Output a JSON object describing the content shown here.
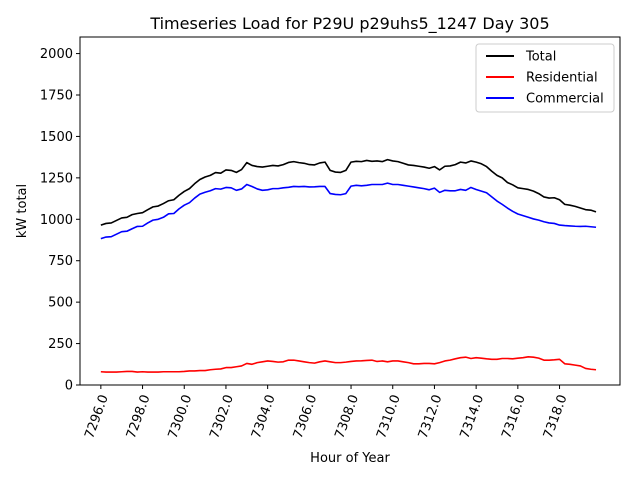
{
  "chart_data": {
    "type": "line",
    "title": "Timeseries Load for P29U p29uhs5_1247  Day 305",
    "xlabel": "Hour of Year",
    "ylabel": "kW total",
    "xlim": [
      7295.0,
      7320.9
    ],
    "ylim": [
      0,
      2100
    ],
    "xticks": [
      7296,
      7298,
      7300,
      7302,
      7304,
      7306,
      7308,
      7310,
      7312,
      7314,
      7316,
      7318
    ],
    "xtick_labels": [
      "7296.0",
      "7298.0",
      "7300.0",
      "7302.0",
      "7304.0",
      "7306.0",
      "7308.0",
      "7310.0",
      "7312.0",
      "7314.0",
      "7316.0",
      "7318.0"
    ],
    "yticks": [
      0,
      250,
      500,
      750,
      1000,
      1250,
      1500,
      1750,
      2000
    ],
    "ytick_labels": [
      "0",
      "250",
      "500",
      "750",
      "1000",
      "1250",
      "1500",
      "1750",
      "2000"
    ],
    "grid": false,
    "legend_position": "top-right",
    "x": [
      7296.0,
      7296.25,
      7296.5,
      7296.75,
      7297.0,
      7297.25,
      7297.5,
      7297.75,
      7298.0,
      7298.25,
      7298.5,
      7298.75,
      7299.0,
      7299.25,
      7299.5,
      7299.75,
      7300.0,
      7300.25,
      7300.5,
      7300.75,
      7301.0,
      7301.25,
      7301.5,
      7301.75,
      7302.0,
      7302.25,
      7302.5,
      7302.75,
      7303.0,
      7303.25,
      7303.5,
      7303.75,
      7304.0,
      7304.25,
      7304.5,
      7304.75,
      7305.0,
      7305.25,
      7305.5,
      7305.75,
      7306.0,
      7306.25,
      7306.5,
      7306.75,
      7307.0,
      7307.25,
      7307.5,
      7307.75,
      7308.0,
      7308.25,
      7308.5,
      7308.75,
      7309.0,
      7309.25,
      7309.5,
      7309.75,
      7310.0,
      7310.25,
      7310.5,
      7310.75,
      7311.0,
      7311.25,
      7311.5,
      7311.75,
      7312.0,
      7312.25,
      7312.5,
      7312.75,
      7313.0,
      7313.25,
      7313.5,
      7313.75,
      7314.0,
      7314.25,
      7314.5,
      7314.75,
      7315.0,
      7315.25,
      7315.5,
      7315.75,
      7316.0,
      7316.25,
      7316.5,
      7316.75,
      7317.0,
      7317.25,
      7317.5,
      7317.75,
      7318.0,
      7318.25,
      7318.5,
      7318.75,
      7319.0,
      7319.25,
      7319.5,
      7319.75
    ],
    "series": [
      {
        "name": "Total",
        "color": "#000000",
        "values": [
          965,
          975,
          978,
          993,
          1008,
          1012,
          1028,
          1035,
          1040,
          1058,
          1075,
          1080,
          1095,
          1112,
          1118,
          1145,
          1168,
          1185,
          1215,
          1240,
          1255,
          1265,
          1282,
          1278,
          1298,
          1295,
          1283,
          1300,
          1342,
          1325,
          1318,
          1315,
          1320,
          1325,
          1322,
          1330,
          1343,
          1348,
          1342,
          1338,
          1330,
          1328,
          1340,
          1345,
          1295,
          1285,
          1283,
          1295,
          1345,
          1350,
          1348,
          1355,
          1350,
          1352,
          1348,
          1360,
          1352,
          1348,
          1338,
          1328,
          1325,
          1320,
          1315,
          1308,
          1318,
          1298,
          1320,
          1322,
          1330,
          1345,
          1340,
          1352,
          1345,
          1335,
          1318,
          1290,
          1265,
          1250,
          1222,
          1208,
          1190,
          1185,
          1180,
          1170,
          1155,
          1135,
          1128,
          1130,
          1118,
          1090,
          1085,
          1078,
          1068,
          1058,
          1055,
          1045
        ]
      },
      {
        "name": "Residential",
        "color": "#ff0000",
        "values": [
          80,
          78,
          78,
          78,
          80,
          82,
          82,
          78,
          80,
          78,
          78,
          78,
          80,
          80,
          80,
          80,
          82,
          85,
          85,
          87,
          87,
          92,
          95,
          97,
          105,
          105,
          110,
          115,
          130,
          125,
          135,
          140,
          145,
          142,
          138,
          140,
          150,
          150,
          145,
          140,
          135,
          132,
          140,
          145,
          140,
          135,
          135,
          138,
          142,
          145,
          146,
          148,
          150,
          142,
          145,
          140,
          145,
          145,
          140,
          135,
          128,
          128,
          130,
          130,
          128,
          135,
          145,
          150,
          158,
          165,
          168,
          160,
          165,
          162,
          158,
          155,
          155,
          160,
          160,
          158,
          162,
          165,
          170,
          168,
          162,
          150,
          150,
          152,
          155,
          128,
          125,
          120,
          115,
          100,
          95,
          92
        ]
      },
      {
        "name": "Commercial",
        "color": "#0000ff",
        "values": [
          883,
          893,
          895,
          910,
          925,
          928,
          943,
          957,
          958,
          978,
          995,
          1000,
          1012,
          1033,
          1035,
          1063,
          1085,
          1100,
          1128,
          1152,
          1163,
          1172,
          1185,
          1182,
          1192,
          1190,
          1175,
          1183,
          1210,
          1198,
          1183,
          1175,
          1178,
          1185,
          1185,
          1190,
          1193,
          1198,
          1197,
          1198,
          1195,
          1196,
          1198,
          1198,
          1155,
          1150,
          1148,
          1155,
          1200,
          1205,
          1202,
          1205,
          1210,
          1210,
          1210,
          1218,
          1210,
          1210,
          1205,
          1200,
          1195,
          1190,
          1185,
          1178,
          1188,
          1162,
          1175,
          1172,
          1172,
          1180,
          1175,
          1192,
          1180,
          1170,
          1160,
          1135,
          1110,
          1090,
          1068,
          1048,
          1032,
          1022,
          1012,
          1002,
          995,
          985,
          978,
          975,
          965,
          962,
          960,
          958,
          957,
          958,
          955,
          952
        ]
      }
    ]
  }
}
